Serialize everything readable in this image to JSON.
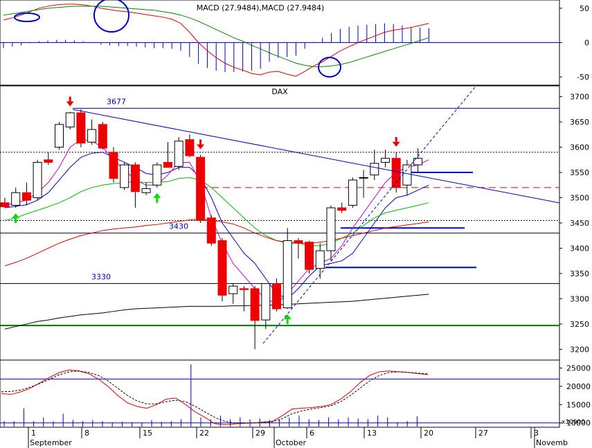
{
  "chart_data": [
    {
      "type": "histogram-line",
      "title": "MACD (27.9484),MACD (27.9484)",
      "yticks": [
        50,
        0,
        -50
      ],
      "ylim": [
        -60,
        60
      ],
      "series": [
        {
          "name": "MACD",
          "color": "#dd0000",
          "values": [
            33,
            36,
            40,
            45,
            50,
            53,
            55,
            56,
            56,
            55,
            53,
            50,
            48,
            46,
            45,
            43,
            41,
            39,
            37,
            34,
            28,
            15,
            0,
            -12,
            -22,
            -30,
            -36,
            -40,
            -45,
            -47,
            -43,
            -42,
            -46,
            -49,
            -42,
            -34,
            -28,
            -20,
            -12,
            -6,
            0,
            5,
            10,
            15,
            18,
            20,
            22,
            25,
            28
          ]
        },
        {
          "name": "Signal",
          "color": "#008800",
          "values": [
            40,
            42,
            44,
            46,
            48,
            50,
            51,
            52,
            53,
            53,
            53,
            53,
            52,
            51,
            50,
            49,
            48,
            47,
            45,
            43,
            40,
            36,
            31,
            25,
            19,
            13,
            7,
            2,
            -4,
            -9,
            -15,
            -20,
            -25,
            -30,
            -33,
            -35,
            -35,
            -34,
            -32,
            -29,
            -25,
            -21,
            -17,
            -13,
            -9,
            -5,
            -1,
            3,
            7
          ]
        }
      ],
      "histogram": {
        "color": "#0000cc",
        "values": [
          -8,
          -6,
          -4,
          -1,
          2,
          3,
          4,
          4,
          3,
          2,
          0,
          -3,
          -4,
          -5,
          -5,
          -6,
          -7,
          -8,
          -8,
          -9,
          -12,
          -21,
          -31,
          -37,
          -41,
          -43,
          -43,
          -42,
          -41,
          -38,
          -28,
          -22,
          -21,
          -19,
          -9,
          1,
          7,
          14,
          20,
          23,
          25,
          26,
          27,
          28,
          27,
          25,
          23,
          22,
          21
        ]
      },
      "markers": [
        "circle",
        "circle",
        "circle"
      ]
    },
    {
      "type": "candlestick",
      "title": "DAX",
      "yticks": [
        3700,
        3650,
        3600,
        3550,
        3500,
        3450,
        3400,
        3350,
        3300,
        3250,
        3200
      ],
      "ylim": [
        3180,
        3720
      ],
      "candles": [
        {
          "o": 3490,
          "h": 3500,
          "l": 3480,
          "c": 3482
        },
        {
          "o": 3485,
          "h": 3520,
          "l": 3480,
          "c": 3510
        },
        {
          "o": 3510,
          "h": 3530,
          "l": 3485,
          "c": 3495
        },
        {
          "o": 3500,
          "h": 3575,
          "l": 3495,
          "c": 3570
        },
        {
          "o": 3575,
          "h": 3590,
          "l": 3565,
          "c": 3570
        },
        {
          "o": 3600,
          "h": 3650,
          "l": 3595,
          "c": 3645
        },
        {
          "o": 3640,
          "h": 3670,
          "l": 3635,
          "c": 3668
        },
        {
          "o": 3668,
          "h": 3675,
          "l": 3600,
          "c": 3608
        },
        {
          "o": 3610,
          "h": 3655,
          "l": 3605,
          "c": 3635
        },
        {
          "o": 3645,
          "h": 3650,
          "l": 3595,
          "c": 3598
        },
        {
          "o": 3590,
          "h": 3600,
          "l": 3530,
          "c": 3538
        },
        {
          "o": 3520,
          "h": 3570,
          "l": 3515,
          "c": 3565
        },
        {
          "o": 3565,
          "h": 3570,
          "l": 3480,
          "c": 3512
        },
        {
          "o": 3510,
          "h": 3530,
          "l": 3505,
          "c": 3518
        },
        {
          "o": 3525,
          "h": 3570,
          "l": 3520,
          "c": 3565
        },
        {
          "o": 3570,
          "h": 3610,
          "l": 3560,
          "c": 3560
        },
        {
          "o": 3562,
          "h": 3620,
          "l": 3555,
          "c": 3612
        },
        {
          "o": 3615,
          "h": 3625,
          "l": 3580,
          "c": 3583
        },
        {
          "o": 3580,
          "h": 3585,
          "l": 3450,
          "c": 3455
        },
        {
          "o": 3460,
          "h": 3465,
          "l": 3405,
          "c": 3410
        },
        {
          "o": 3415,
          "h": 3420,
          "l": 3295,
          "c": 3307
        },
        {
          "o": 3310,
          "h": 3330,
          "l": 3290,
          "c": 3325
        },
        {
          "o": 3320,
          "h": 3325,
          "l": 3275,
          "c": 3318
        },
        {
          "o": 3320,
          "h": 3325,
          "l": 3200,
          "c": 3257
        },
        {
          "o": 3258,
          "h": 3330,
          "l": 3240,
          "c": 3330
        },
        {
          "o": 3330,
          "h": 3340,
          "l": 3275,
          "c": 3280
        },
        {
          "o": 3282,
          "h": 3440,
          "l": 3280,
          "c": 3415
        },
        {
          "o": 3415,
          "h": 3420,
          "l": 3380,
          "c": 3410
        },
        {
          "o": 3412,
          "h": 3415,
          "l": 3350,
          "c": 3358
        },
        {
          "o": 3360,
          "h": 3410,
          "l": 3340,
          "c": 3395
        },
        {
          "o": 3395,
          "h": 3485,
          "l": 3375,
          "c": 3480
        },
        {
          "o": 3480,
          "h": 3490,
          "l": 3470,
          "c": 3475
        },
        {
          "o": 3485,
          "h": 3540,
          "l": 3480,
          "c": 3535
        },
        {
          "o": 3540,
          "h": 3555,
          "l": 3500,
          "c": 3540
        },
        {
          "o": 3545,
          "h": 3595,
          "l": 3535,
          "c": 3568
        },
        {
          "o": 3570,
          "h": 3595,
          "l": 3560,
          "c": 3578
        },
        {
          "o": 3578,
          "h": 3590,
          "l": 3510,
          "c": 3520
        },
        {
          "o": 3525,
          "h": 3575,
          "l": 3505,
          "c": 3565
        },
        {
          "o": 3565,
          "h": 3598,
          "l": 3550,
          "c": 3578
        }
      ],
      "bull_color": "#ffffff",
      "bear_color": "#ee0000",
      "moving_averages": [
        {
          "color": "#0000cc",
          "values": [
            3480,
            3483,
            3486,
            3495,
            3510,
            3535,
            3560,
            3580,
            3588,
            3590,
            3580,
            3570,
            3560,
            3548,
            3545,
            3550,
            3560,
            3560,
            3540,
            3500,
            3450,
            3420,
            3390,
            3370,
            3340,
            3310,
            3300,
            3320,
            3345,
            3365,
            3370,
            3375,
            3390,
            3420,
            3450,
            3480,
            3500,
            3505,
            3515,
            3525
          ]
        },
        {
          "color": "#cc00cc",
          "values": [
            3485,
            3490,
            3495,
            3510,
            3530,
            3560,
            3600,
            3615,
            3612,
            3600,
            3575,
            3555,
            3535,
            3525,
            3525,
            3545,
            3570,
            3570,
            3530,
            3460,
            3410,
            3370,
            3345,
            3320,
            3300,
            3290,
            3310,
            3335,
            3360,
            3370,
            3380,
            3405,
            3440,
            3470,
            3500,
            3530,
            3550,
            3560,
            3565,
            3575
          ]
        },
        {
          "color": "#00bb00",
          "values": [
            3455,
            3460,
            3468,
            3475,
            3482,
            3490,
            3500,
            3512,
            3520,
            3525,
            3528,
            3530,
            3532,
            3530,
            3530,
            3532,
            3538,
            3540,
            3535,
            3520,
            3500,
            3480,
            3460,
            3440,
            3425,
            3415,
            3410,
            3410,
            3405,
            3405,
            3410,
            3420,
            3430,
            3445,
            3460,
            3470,
            3475,
            3480,
            3485,
            3490
          ]
        },
        {
          "color": "#dd0000",
          "values": [
            3365,
            3372,
            3380,
            3390,
            3400,
            3410,
            3418,
            3425,
            3430,
            3435,
            3438,
            3440,
            3442,
            3445,
            3447,
            3450,
            3453,
            3456,
            3457,
            3456,
            3452,
            3448,
            3440,
            3430,
            3422,
            3415,
            3412,
            3410,
            3410,
            3412,
            3415,
            3420,
            3425,
            3430,
            3435,
            3440,
            3443,
            3446,
            3449,
            3452
          ]
        },
        {
          "color": "#000000",
          "values": [
            3240,
            3245,
            3250,
            3255,
            3258,
            3262,
            3265,
            3268,
            3270,
            3272,
            3275,
            3278,
            3280,
            3281,
            3282,
            3283,
            3284,
            3285,
            3285,
            3285,
            3285,
            3286,
            3286,
            3287,
            3287,
            3288,
            3289,
            3290,
            3291,
            3292,
            3293,
            3294,
            3295,
            3297,
            3299,
            3301,
            3303,
            3305,
            3307,
            3309
          ]
        }
      ],
      "horizontal_lines": [
        {
          "value": 3677,
          "label": "3677",
          "color": "#0000aa",
          "style": "solid"
        },
        {
          "value": 3590,
          "color": "#000000",
          "style": "dotted"
        },
        {
          "value": 3550,
          "color": "#0000cc",
          "style": "solid"
        },
        {
          "value": 3520,
          "color": "#dd0000",
          "style": "dashed"
        },
        {
          "value": 3455,
          "color": "#000000",
          "style": "dotted"
        },
        {
          "value": 3440,
          "color": "#0000cc",
          "style": "solid"
        },
        {
          "value": 3430,
          "label": "3430",
          "color": "#000044",
          "style": "solid"
        },
        {
          "value": 3362,
          "color": "#0000cc",
          "style": "solid"
        },
        {
          "value": 3330,
          "label": "3330",
          "color": "#000044",
          "style": "solid"
        },
        {
          "value": 3247,
          "color": "#007700",
          "style": "solid"
        }
      ],
      "arrows_down": [
        6,
        18,
        36
      ],
      "arrows_up": [
        1,
        14,
        26
      ]
    },
    {
      "type": "volume",
      "yticks": [
        25000,
        20000,
        15000,
        10000
      ],
      "unit_label": "x10000",
      "ylim": [
        9000,
        27000
      ],
      "oscillator_1": {
        "color": "#dd0000",
        "values": [
          18000,
          17800,
          18500,
          19500,
          21000,
          22500,
          23800,
          24500,
          24200,
          23500,
          22000,
          20000,
          17500,
          15500,
          14500,
          14000,
          15000,
          16500,
          16800,
          15000,
          13000,
          11500,
          9800,
          9500,
          9700,
          9900,
          10000,
          10200,
          10500,
          12000,
          13800,
          14000,
          14200,
          14500,
          15000,
          16500,
          18500,
          21000,
          23000,
          24000,
          24200,
          24000,
          23800,
          23500,
          23200
        ]
      },
      "oscillator_2": {
        "color": "#000000",
        "values": [
          18500,
          18600,
          19000,
          19800,
          20800,
          22000,
          23200,
          24000,
          24200,
          23800,
          23000,
          21500,
          19500,
          17500,
          16000,
          15200,
          15200,
          15800,
          16200,
          15800,
          14500,
          13000,
          11500,
          10500,
          10000,
          9900,
          10000,
          10100,
          10300,
          11200,
          12500,
          13300,
          13800,
          14200,
          14700,
          15800,
          17500,
          19500,
          21500,
          23000,
          23800,
          24000,
          23800,
          23600,
          23400
        ]
      },
      "bars": [
        10500,
        10500,
        14000,
        10500,
        11500,
        10500,
        12500,
        10800,
        10500,
        10800,
        10500,
        10200,
        10300,
        10200,
        10100,
        10800,
        10300,
        10500,
        11000,
        26000,
        11500,
        11000,
        12000,
        11000,
        11500,
        11000,
        11200,
        10800,
        11000,
        11500,
        12000,
        11000,
        10800,
        11500,
        11000,
        11500,
        11200,
        11000,
        12000,
        11500,
        10200,
        10500,
        11800
      ]
    }
  ],
  "x_axis": {
    "tick_labels": [
      "1",
      "8",
      "15",
      "22",
      "29",
      "6",
      "13",
      "20",
      "27",
      "3"
    ],
    "month_labels": [
      "September",
      "October",
      "Novemb"
    ]
  }
}
